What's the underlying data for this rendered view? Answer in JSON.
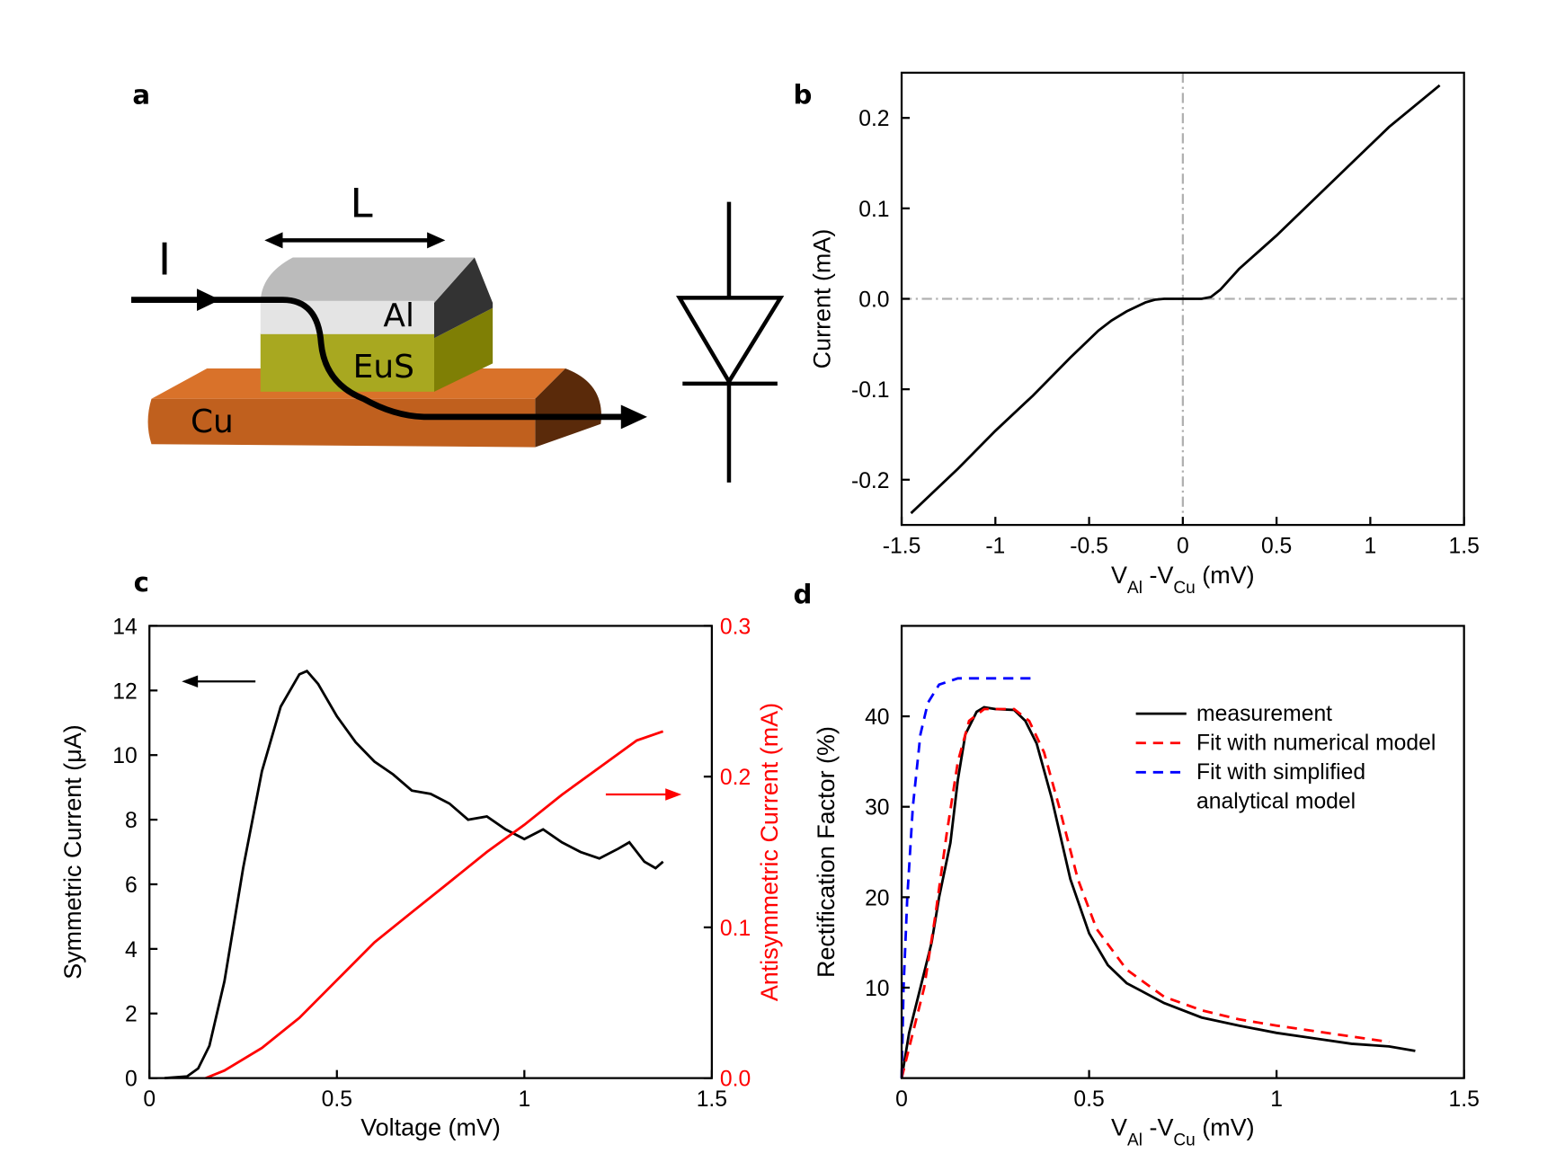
{
  "panel_labels": [
    "a",
    "b",
    "c",
    "d"
  ],
  "diagram": {
    "length_label": "L",
    "current_label": "I",
    "layers": [
      "Al",
      "EuS",
      "Cu"
    ]
  },
  "chart_data": [
    {
      "type": "line",
      "x_label_parts": [
        "V",
        "Al",
        " -V",
        "Cu",
        " (mV)"
      ],
      "y_label": "Current (mA)",
      "xlim": [
        -1.5,
        1.5
      ],
      "xticks": [
        -1.5,
        -1,
        -0.5,
        0,
        0.5,
        1,
        1.5
      ],
      "ylim": [
        -0.25,
        0.25
      ],
      "yticks": [
        -0.2,
        -0.1,
        {
          "value": 0,
          "label": "0.0"
        },
        0.1,
        0.2
      ],
      "zero_lines": true,
      "zero_line_color": "#b0b0b0",
      "series": [
        {
          "color": "#000000",
          "x": [
            -1.45,
            -1.2,
            -1.0,
            -0.8,
            -0.6,
            -0.45,
            -0.38,
            -0.3,
            -0.2,
            -0.15,
            -0.1,
            0,
            0.1,
            0.15,
            0.2,
            0.3,
            0.5,
            0.7,
            0.9,
            1.1,
            1.37
          ],
          "values": [
            -0.237,
            -0.188,
            -0.146,
            -0.107,
            -0.065,
            -0.035,
            -0.024,
            -0.014,
            -0.004,
            -0.001,
            0,
            0,
            0,
            0.002,
            0.01,
            0.033,
            0.07,
            0.11,
            0.15,
            0.19,
            0.236
          ]
        }
      ]
    },
    {
      "type": "line",
      "x_label_parts": [
        "Voltage (mV)"
      ],
      "y_label": "Symmetric Current (μA)",
      "y2_label": "Antisymmetric Current (mA)",
      "y2_color": "#ff0000",
      "xlim": [
        0,
        1.5
      ],
      "xticks": [
        0,
        0.5,
        1,
        1.5
      ],
      "ylim": [
        0,
        14
      ],
      "yticks": [
        0,
        2,
        4,
        6,
        8,
        10,
        12,
        14
      ],
      "y2lim": [
        0,
        0.3
      ],
      "y2ticks": [
        {
          "value": 0,
          "label": "0.0"
        },
        0.1,
        0.2,
        0.3
      ],
      "series": [
        {
          "color": "#000000",
          "x": [
            0.04,
            0.1,
            0.13,
            0.16,
            0.2,
            0.25,
            0.3,
            0.35,
            0.4,
            0.42,
            0.45,
            0.5,
            0.55,
            0.6,
            0.65,
            0.7,
            0.75,
            0.8,
            0.85,
            0.9,
            0.95,
            1.0,
            1.05,
            1.1,
            1.15,
            1.2,
            1.25,
            1.28,
            1.32,
            1.35,
            1.37
          ],
          "values": [
            0,
            0.05,
            0.3,
            1,
            3,
            6.5,
            9.5,
            11.5,
            12.5,
            12.6,
            12.2,
            11.2,
            10.4,
            9.8,
            9.4,
            8.9,
            8.8,
            8.5,
            8.0,
            8.1,
            7.7,
            7.4,
            7.7,
            7.3,
            7.0,
            6.8,
            7.1,
            7.3,
            6.7,
            6.5,
            6.7
          ]
        },
        {
          "color": "#ff0000",
          "axis": "y2",
          "x": [
            0.15,
            0.2,
            0.3,
            0.4,
            0.5,
            0.6,
            0.7,
            0.8,
            0.9,
            1.0,
            1.1,
            1.2,
            1.3,
            1.37
          ],
          "values": [
            0,
            0.005,
            0.02,
            0.04,
            0.065,
            0.09,
            0.11,
            0.13,
            0.15,
            0.168,
            0.188,
            0.206,
            0.224,
            0.23
          ]
        }
      ]
    },
    {
      "type": "line",
      "x_label_parts": [
        "V",
        "Al",
        " -V",
        "Cu",
        " (mV)"
      ],
      "y_label": "Rectification Factor (%)",
      "xlim": [
        0,
        1.5
      ],
      "xticks": [
        0,
        0.5,
        1,
        1.5
      ],
      "ylim": [
        0,
        50
      ],
      "yticks": [
        10,
        20,
        30,
        40
      ],
      "legend": "upper right",
      "series": [
        {
          "name": "measurement",
          "color": "#000000",
          "x": [
            0,
            0.02,
            0.05,
            0.08,
            0.1,
            0.13,
            0.15,
            0.17,
            0.2,
            0.22,
            0.25,
            0.3,
            0.33,
            0.36,
            0.4,
            0.45,
            0.5,
            0.55,
            0.6,
            0.7,
            0.8,
            0.9,
            1.0,
            1.1,
            1.2,
            1.3,
            1.37
          ],
          "values": [
            0,
            5,
            10,
            15,
            20,
            26,
            33,
            38,
            40.5,
            41,
            40.8,
            40.7,
            39.5,
            37,
            31,
            22,
            16,
            12.5,
            10.5,
            8.3,
            6.7,
            5.8,
            5,
            4.4,
            3.8,
            3.5,
            3
          ]
        },
        {
          "name": "Fit with numerical model",
          "color": "#ff0000",
          "dashed": true,
          "x": [
            0,
            0.03,
            0.06,
            0.09,
            0.12,
            0.15,
            0.18,
            0.22,
            0.3,
            0.34,
            0.38,
            0.42,
            0.47,
            0.52,
            0.6,
            0.7,
            0.8,
            0.9,
            1.0,
            1.1,
            1.2,
            1.3
          ],
          "values": [
            0,
            5,
            10,
            18,
            27,
            35,
            39.5,
            40.8,
            40.8,
            39.5,
            36,
            30,
            22,
            16.5,
            12,
            9,
            7.5,
            6.5,
            5.8,
            5.2,
            4.6,
            4
          ]
        },
        {
          "name": "Fit with simplified\nanalytical model",
          "color": "#0000ff",
          "dashed": true,
          "x": [
            0,
            0.005,
            0.015,
            0.03,
            0.05,
            0.07,
            0.1,
            0.15,
            0.35
          ],
          "values": [
            0,
            10,
            20,
            30,
            38,
            41.5,
            43.5,
            44.2,
            44.2
          ]
        }
      ]
    }
  ]
}
